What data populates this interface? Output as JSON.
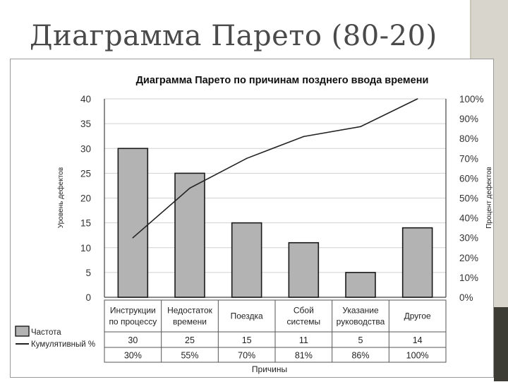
{
  "slide": {
    "title": "Диаграмма Парето (80-20)"
  },
  "chart_data": {
    "type": "bar",
    "title": "Диаграмма Парето по причинам позднего ввода времени",
    "xlabel": "Причины",
    "ylabel": "Уровень дефектов",
    "y2label": "Процент дефектов",
    "ylim": [
      0,
      40
    ],
    "y2lim": [
      0,
      100
    ],
    "yticks": [
      0,
      5,
      10,
      15,
      20,
      25,
      30,
      35,
      40
    ],
    "y2ticks": [
      0,
      10,
      20,
      30,
      40,
      50,
      60,
      70,
      80,
      90,
      100
    ],
    "grid": true,
    "categories": [
      [
        "Инструкции",
        "по процессу"
      ],
      [
        "Недостаток",
        "времени"
      ],
      [
        "Поездка"
      ],
      [
        "Сбой",
        "системы"
      ],
      [
        "Указание",
        "руководства"
      ],
      [
        "Другое"
      ]
    ],
    "series": [
      {
        "name": "Частота",
        "type": "bar",
        "values": [
          30,
          25,
          15,
          11,
          5,
          14
        ],
        "labels": [
          "30",
          "25",
          "15",
          "11",
          "5",
          "14"
        ]
      },
      {
        "name": "Кумулятивный %",
        "type": "line",
        "axis": "right",
        "values": [
          30,
          55,
          70,
          81,
          86,
          100
        ],
        "labels": [
          "30%",
          "55%",
          "70%",
          "81%",
          "86%",
          "100%"
        ]
      }
    ],
    "colors": {
      "bar": "#b3b3b3",
      "line": "#222222",
      "grid": "#d0d0d0"
    }
  }
}
